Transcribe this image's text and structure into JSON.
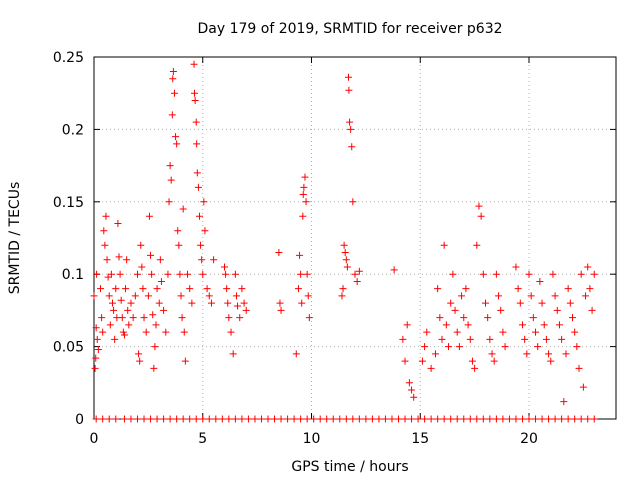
{
  "chart_data": {
    "type": "scatter",
    "title": "Day 179 of 2019, SRMTID for receiver p632",
    "xlabel": "GPS time / hours",
    "ylabel": "SRMTID / TECUs",
    "xlim": [
      0,
      24
    ],
    "ylim": [
      0,
      0.25
    ],
    "xticks": [
      0,
      5,
      10,
      15,
      20
    ],
    "xtick_labels": [
      "0",
      "5",
      "10",
      "15",
      "20"
    ],
    "yticks": [
      0,
      0.05,
      0.1,
      0.15,
      0.2,
      0.25
    ],
    "ytick_labels": [
      "0",
      "0.05",
      "0.1",
      "0.15",
      "0.2",
      "0.25"
    ],
    "grid": true,
    "marker": "+",
    "series": [
      {
        "name": "SRMTID",
        "color": "#ff0000",
        "points": [
          [
            0.0,
            0.085
          ],
          [
            0.05,
            0.035
          ],
          [
            0.08,
            0.042
          ],
          [
            0.1,
            0.063
          ],
          [
            0.12,
            0.1
          ],
          [
            0.15,
            0.055
          ],
          [
            0.2,
            0.048
          ],
          [
            0.3,
            0.09
          ],
          [
            0.35,
            0.07
          ],
          [
            0.4,
            0.06
          ],
          [
            0.45,
            0.13
          ],
          [
            0.5,
            0.12
          ],
          [
            0.55,
            0.14
          ],
          [
            0.6,
            0.11
          ],
          [
            0.65,
            0.098
          ],
          [
            0.7,
            0.085
          ],
          [
            0.75,
            0.065
          ],
          [
            0.8,
            0.1
          ],
          [
            0.85,
            0.08
          ],
          [
            0.9,
            0.075
          ],
          [
            0.95,
            0.055
          ],
          [
            1.0,
            0.09
          ],
          [
            1.05,
            0.07
          ],
          [
            1.1,
            0.135
          ],
          [
            1.15,
            0.112
          ],
          [
            1.2,
            0.1
          ],
          [
            1.25,
            0.082
          ],
          [
            1.3,
            0.07
          ],
          [
            1.35,
            0.06
          ],
          [
            1.4,
            0.058
          ],
          [
            1.45,
            0.09
          ],
          [
            1.5,
            0.11
          ],
          [
            1.55,
            0.075
          ],
          [
            1.6,
            0.065
          ],
          [
            1.7,
            0.08
          ],
          [
            1.8,
            0.07
          ],
          [
            1.9,
            0.085
          ],
          [
            2.0,
            0.1
          ],
          [
            2.05,
            0.045
          ],
          [
            2.1,
            0.04
          ],
          [
            2.15,
            0.12
          ],
          [
            2.2,
            0.105
          ],
          [
            2.25,
            0.09
          ],
          [
            2.3,
            0.07
          ],
          [
            2.4,
            0.06
          ],
          [
            2.5,
            0.085
          ],
          [
            2.55,
            0.14
          ],
          [
            2.6,
            0.113
          ],
          [
            2.65,
            0.1
          ],
          [
            2.7,
            0.072
          ],
          [
            2.75,
            0.035
          ],
          [
            2.8,
            0.05
          ],
          [
            2.85,
            0.065
          ],
          [
            2.9,
            0.09
          ],
          [
            3.0,
            0.08
          ],
          [
            3.05,
            0.11
          ],
          [
            3.1,
            0.095
          ],
          [
            3.2,
            0.075
          ],
          [
            3.3,
            0.06
          ],
          [
            3.4,
            0.1
          ],
          [
            3.45,
            0.15
          ],
          [
            3.5,
            0.175
          ],
          [
            3.55,
            0.165
          ],
          [
            3.6,
            0.21
          ],
          [
            3.62,
            0.235
          ],
          [
            3.65,
            0.24
          ],
          [
            3.7,
            0.225
          ],
          [
            3.75,
            0.195
          ],
          [
            3.8,
            0.19
          ],
          [
            3.85,
            0.13
          ],
          [
            3.9,
            0.12
          ],
          [
            3.95,
            0.1
          ],
          [
            4.0,
            0.085
          ],
          [
            4.05,
            0.07
          ],
          [
            4.1,
            0.145
          ],
          [
            4.15,
            0.06
          ],
          [
            4.2,
            0.04
          ],
          [
            4.3,
            0.1
          ],
          [
            4.4,
            0.09
          ],
          [
            4.5,
            0.08
          ],
          [
            4.6,
            0.245
          ],
          [
            4.62,
            0.225
          ],
          [
            4.65,
            0.22
          ],
          [
            4.7,
            0.205
          ],
          [
            4.72,
            0.19
          ],
          [
            4.75,
            0.17
          ],
          [
            4.8,
            0.16
          ],
          [
            4.85,
            0.14
          ],
          [
            4.9,
            0.12
          ],
          [
            4.95,
            0.11
          ],
          [
            5.0,
            0.1
          ],
          [
            5.05,
            0.15
          ],
          [
            5.1,
            0.13
          ],
          [
            5.2,
            0.09
          ],
          [
            5.3,
            0.085
          ],
          [
            5.4,
            0.08
          ],
          [
            5.5,
            0.11
          ],
          [
            6.0,
            0.105
          ],
          [
            6.05,
            0.1
          ],
          [
            6.1,
            0.09
          ],
          [
            6.15,
            0.08
          ],
          [
            6.2,
            0.07
          ],
          [
            6.3,
            0.06
          ],
          [
            6.4,
            0.045
          ],
          [
            6.5,
            0.1
          ],
          [
            6.55,
            0.085
          ],
          [
            6.6,
            0.078
          ],
          [
            6.7,
            0.07
          ],
          [
            6.8,
            0.09
          ],
          [
            6.9,
            0.08
          ],
          [
            7.0,
            0.075
          ],
          [
            8.5,
            0.115
          ],
          [
            8.55,
            0.08
          ],
          [
            8.6,
            0.075
          ],
          [
            9.3,
            0.045
          ],
          [
            9.4,
            0.09
          ],
          [
            9.45,
            0.113
          ],
          [
            9.5,
            0.1
          ],
          [
            9.55,
            0.08
          ],
          [
            9.6,
            0.14
          ],
          [
            9.62,
            0.155
          ],
          [
            9.65,
            0.16
          ],
          [
            9.7,
            0.167
          ],
          [
            9.75,
            0.15
          ],
          [
            9.8,
            0.1
          ],
          [
            9.85,
            0.085
          ],
          [
            9.9,
            0.07
          ],
          [
            11.4,
            0.085
          ],
          [
            11.45,
            0.09
          ],
          [
            11.5,
            0.12
          ],
          [
            11.55,
            0.115
          ],
          [
            11.6,
            0.11
          ],
          [
            11.65,
            0.105
          ],
          [
            11.7,
            0.236
          ],
          [
            11.72,
            0.227
          ],
          [
            11.75,
            0.205
          ],
          [
            11.8,
            0.2
          ],
          [
            11.85,
            0.188
          ],
          [
            11.9,
            0.15
          ],
          [
            12.0,
            0.1
          ],
          [
            12.1,
            0.095
          ],
          [
            12.2,
            0.102
          ],
          [
            13.8,
            0.103
          ],
          [
            14.2,
            0.055
          ],
          [
            14.3,
            0.04
          ],
          [
            14.4,
            0.065
          ],
          [
            14.5,
            0.025
          ],
          [
            14.6,
            0.02
          ],
          [
            14.7,
            0.015
          ],
          [
            15.1,
            0.04
          ],
          [
            15.2,
            0.05
          ],
          [
            15.3,
            0.06
          ],
          [
            15.5,
            0.035
          ],
          [
            15.7,
            0.045
          ],
          [
            15.8,
            0.09
          ],
          [
            15.9,
            0.07
          ],
          [
            16.0,
            0.055
          ],
          [
            16.1,
            0.12
          ],
          [
            16.2,
            0.065
          ],
          [
            16.3,
            0.05
          ],
          [
            16.4,
            0.08
          ],
          [
            16.5,
            0.1
          ],
          [
            16.6,
            0.075
          ],
          [
            16.7,
            0.06
          ],
          [
            16.8,
            0.05
          ],
          [
            16.9,
            0.085
          ],
          [
            17.0,
            0.07
          ],
          [
            17.1,
            0.09
          ],
          [
            17.2,
            0.065
          ],
          [
            17.3,
            0.055
          ],
          [
            17.4,
            0.04
          ],
          [
            17.5,
            0.035
          ],
          [
            17.6,
            0.12
          ],
          [
            17.7,
            0.147
          ],
          [
            17.8,
            0.14
          ],
          [
            17.9,
            0.1
          ],
          [
            18.0,
            0.08
          ],
          [
            18.1,
            0.07
          ],
          [
            18.2,
            0.055
          ],
          [
            18.3,
            0.045
          ],
          [
            18.4,
            0.04
          ],
          [
            18.5,
            0.1
          ],
          [
            18.6,
            0.085
          ],
          [
            18.7,
            0.075
          ],
          [
            18.8,
            0.06
          ],
          [
            18.9,
            0.05
          ],
          [
            19.4,
            0.105
          ],
          [
            19.5,
            0.09
          ],
          [
            19.6,
            0.08
          ],
          [
            19.7,
            0.065
          ],
          [
            19.8,
            0.055
          ],
          [
            19.9,
            0.045
          ],
          [
            20.0,
            0.1
          ],
          [
            20.1,
            0.085
          ],
          [
            20.2,
            0.07
          ],
          [
            20.3,
            0.06
          ],
          [
            20.4,
            0.05
          ],
          [
            20.5,
            0.095
          ],
          [
            20.6,
            0.08
          ],
          [
            20.7,
            0.065
          ],
          [
            20.8,
            0.055
          ],
          [
            20.9,
            0.045
          ],
          [
            21.0,
            0.04
          ],
          [
            21.1,
            0.1
          ],
          [
            21.2,
            0.085
          ],
          [
            21.3,
            0.075
          ],
          [
            21.4,
            0.065
          ],
          [
            21.5,
            0.055
          ],
          [
            21.6,
            0.012
          ],
          [
            21.7,
            0.045
          ],
          [
            21.8,
            0.09
          ],
          [
            21.9,
            0.08
          ],
          [
            22.0,
            0.07
          ],
          [
            22.1,
            0.06
          ],
          [
            22.2,
            0.05
          ],
          [
            22.3,
            0.035
          ],
          [
            22.4,
            0.1
          ],
          [
            22.5,
            0.022
          ],
          [
            22.6,
            0.085
          ],
          [
            22.7,
            0.105
          ],
          [
            22.8,
            0.09
          ],
          [
            22.9,
            0.075
          ],
          [
            23.0,
            0.1
          ]
        ]
      },
      {
        "name": "zero baseline",
        "color": "#ff0000",
        "points": [
          [
            0.1,
            0
          ],
          [
            0.4,
            0
          ],
          [
            0.7,
            0
          ],
          [
            1.0,
            0
          ],
          [
            1.4,
            0
          ],
          [
            1.7,
            0
          ],
          [
            2.0,
            0
          ],
          [
            2.3,
            0
          ],
          [
            2.6,
            0
          ],
          [
            2.9,
            0
          ],
          [
            3.2,
            0
          ],
          [
            3.5,
            0
          ],
          [
            3.8,
            0
          ],
          [
            4.1,
            0
          ],
          [
            4.4,
            0
          ],
          [
            4.7,
            0
          ],
          [
            5.0,
            0
          ],
          [
            5.3,
            0
          ],
          [
            5.6,
            0
          ],
          [
            5.9,
            0
          ],
          [
            6.2,
            0
          ],
          [
            6.5,
            0
          ],
          [
            6.8,
            0
          ],
          [
            7.1,
            0
          ],
          [
            7.4,
            0
          ],
          [
            7.7,
            0
          ],
          [
            8.0,
            0
          ],
          [
            8.3,
            0
          ],
          [
            8.6,
            0
          ],
          [
            8.9,
            0
          ],
          [
            9.2,
            0
          ],
          [
            9.5,
            0
          ],
          [
            9.8,
            0
          ],
          [
            10.1,
            0
          ],
          [
            10.4,
            0
          ],
          [
            10.7,
            0
          ],
          [
            11.0,
            0
          ],
          [
            11.3,
            0
          ],
          [
            11.6,
            0
          ],
          [
            11.9,
            0
          ],
          [
            12.2,
            0
          ],
          [
            12.5,
            0
          ],
          [
            12.8,
            0
          ],
          [
            13.1,
            0
          ],
          [
            13.4,
            0
          ],
          [
            13.7,
            0
          ],
          [
            14.0,
            0
          ],
          [
            14.3,
            0
          ],
          [
            14.6,
            0
          ],
          [
            14.9,
            0
          ],
          [
            15.2,
            0
          ],
          [
            15.5,
            0
          ],
          [
            15.8,
            0
          ],
          [
            16.1,
            0
          ],
          [
            16.4,
            0
          ],
          [
            16.7,
            0
          ],
          [
            17.0,
            0
          ],
          [
            17.3,
            0
          ],
          [
            17.6,
            0
          ],
          [
            17.9,
            0
          ],
          [
            18.2,
            0
          ],
          [
            18.5,
            0
          ],
          [
            18.8,
            0
          ],
          [
            19.1,
            0
          ],
          [
            19.4,
            0
          ],
          [
            19.7,
            0
          ],
          [
            20.0,
            0
          ],
          [
            20.3,
            0
          ],
          [
            20.6,
            0
          ],
          [
            20.9,
            0
          ],
          [
            21.2,
            0
          ],
          [
            21.5,
            0
          ],
          [
            21.8,
            0
          ],
          [
            22.1,
            0
          ],
          [
            22.4,
            0
          ],
          [
            22.7,
            0
          ],
          [
            23.0,
            0
          ]
        ]
      }
    ]
  }
}
